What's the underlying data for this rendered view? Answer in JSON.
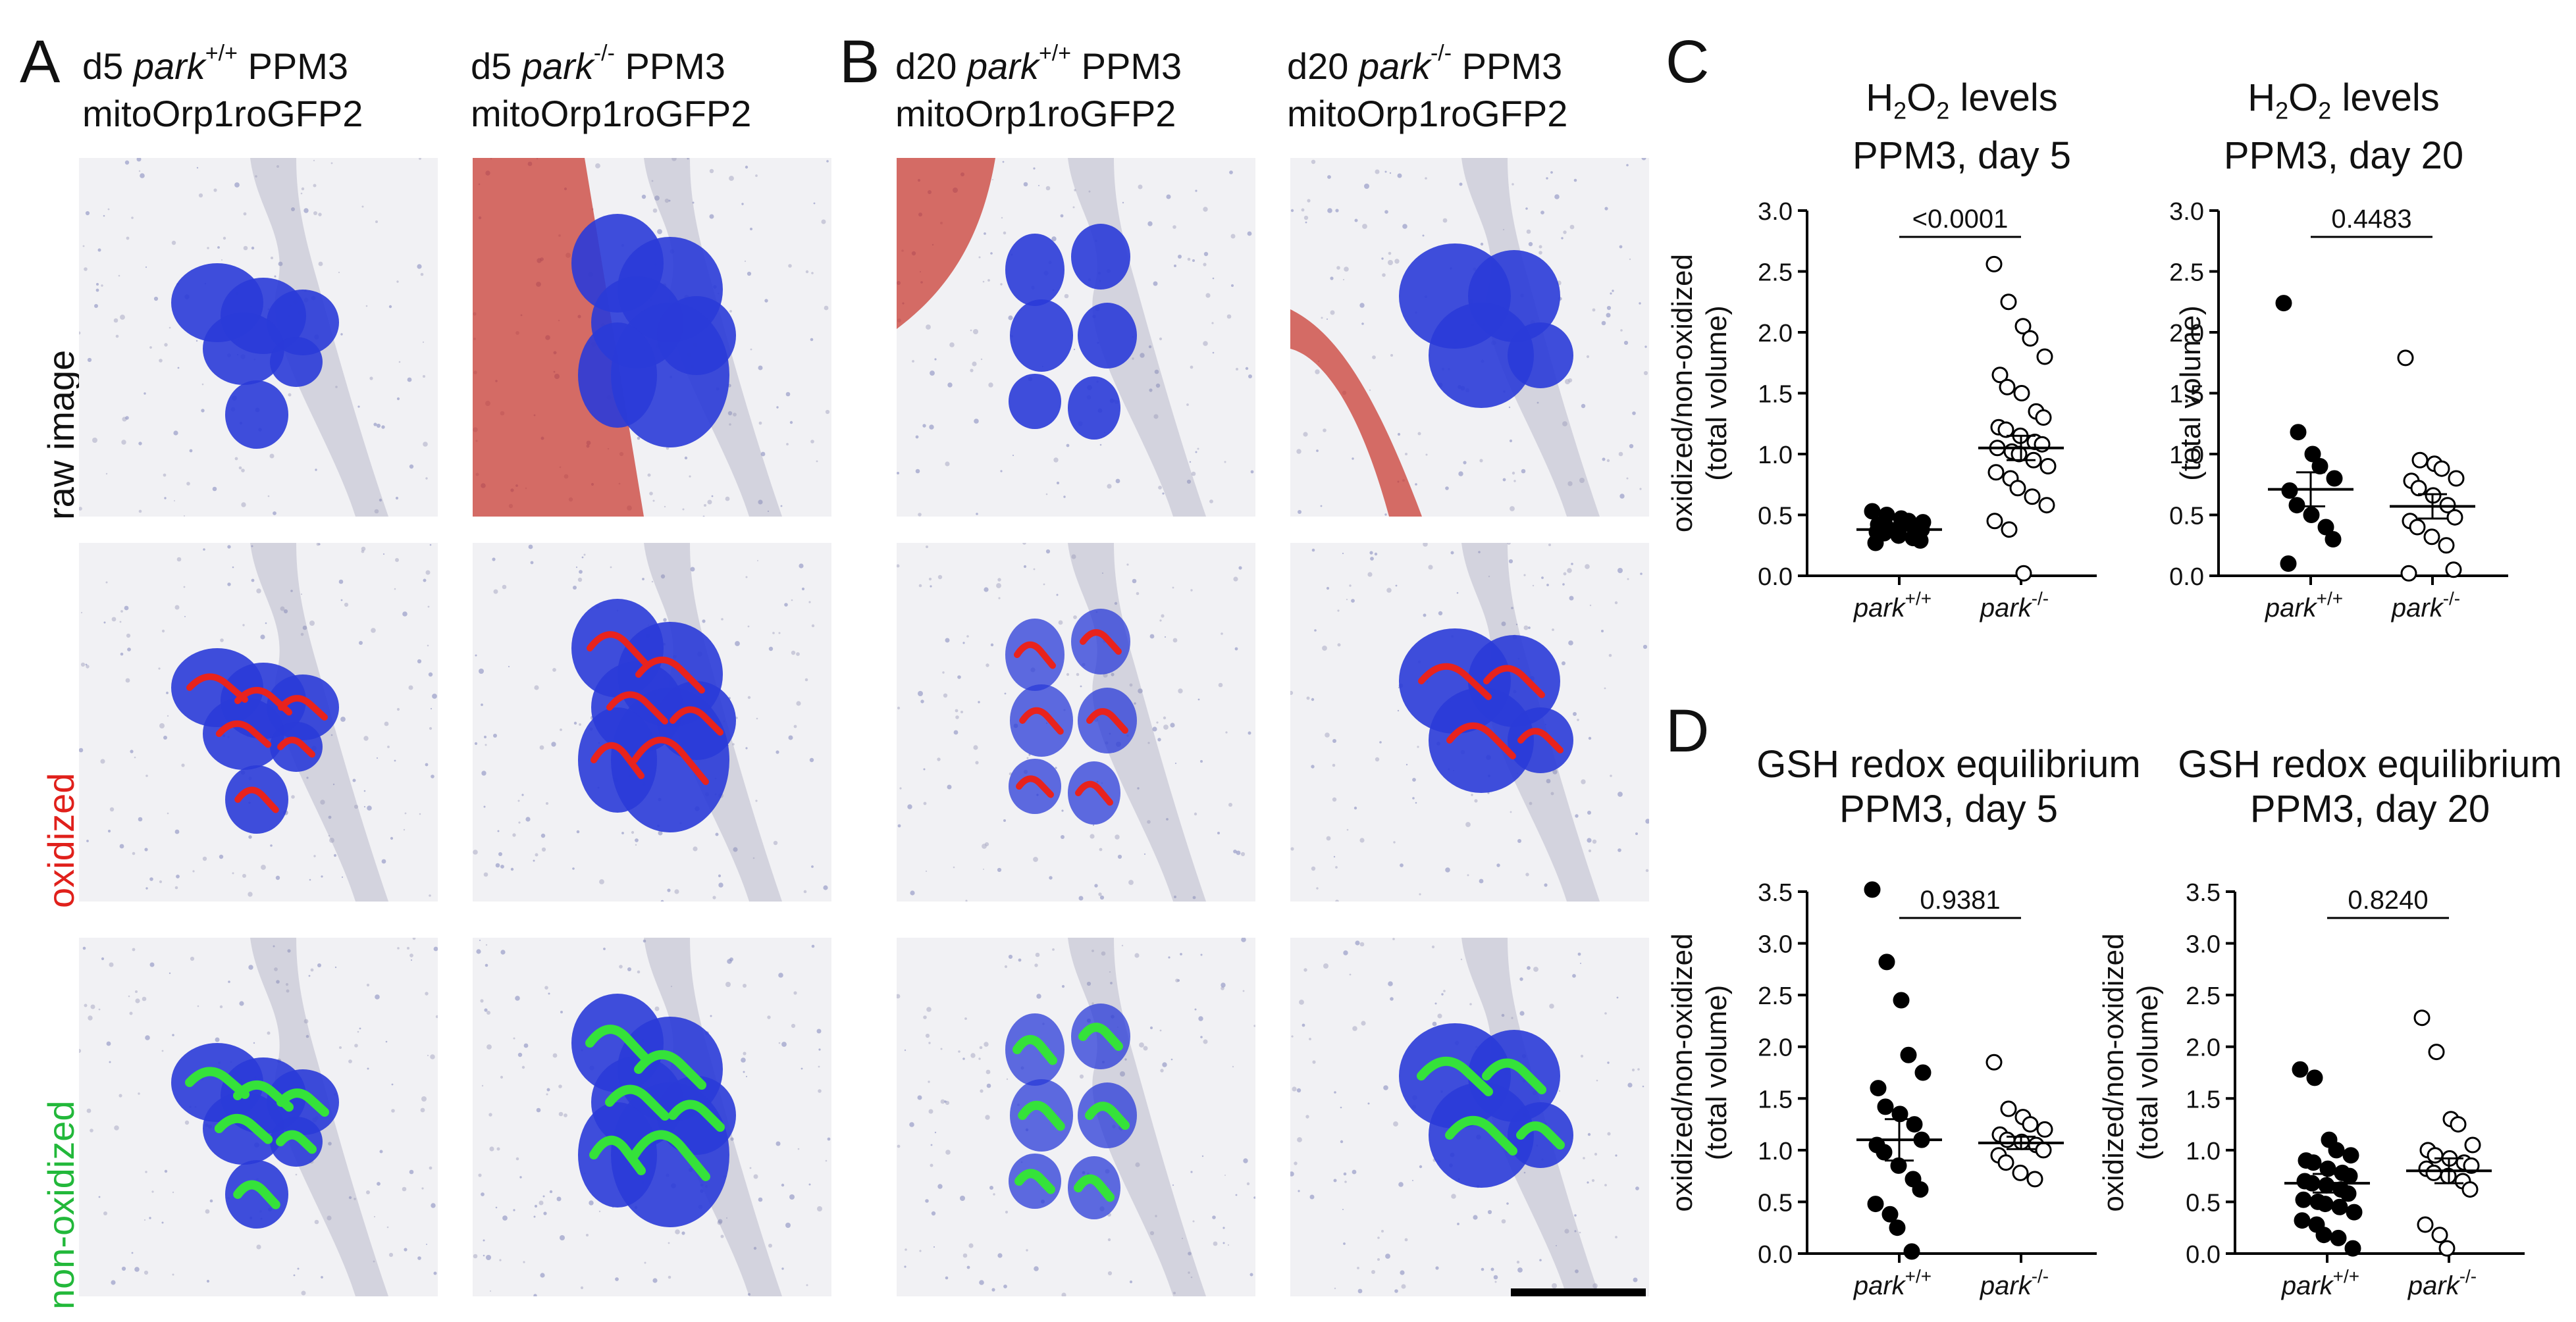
{
  "panels": {
    "A": {
      "letter": "A",
      "col1": {
        "d": "d5 ",
        "geno": "park",
        "sup": "+/+",
        "rest": " PPM3",
        "line2": "mitoOrp1roGFP2"
      },
      "col2": {
        "d": "d5 ",
        "geno": "park",
        "sup": "-/-",
        "rest": " PPM3",
        "line2": "mitoOrp1roGFP2"
      }
    },
    "B": {
      "letter": "B",
      "col1": {
        "d": "d20 ",
        "geno": "park",
        "sup": "+/+",
        "rest": " PPM3",
        "line2": "mitoOrp1roGFP2"
      },
      "col2": {
        "d": "d20 ",
        "geno": "park",
        "sup": "-/-",
        "rest": " PPM3",
        "line2": "mitoOrp1roGFP2"
      }
    },
    "C": {
      "letter": "C"
    },
    "D": {
      "letter": "D"
    }
  },
  "row_labels": [
    {
      "text": "raw image",
      "color": "#111111"
    },
    {
      "text": "oxidized",
      "color": "#e0201b"
    },
    {
      "text": "non-oxidized",
      "color": "#22b83a"
    }
  ],
  "colors": {
    "cell_blue": "#2a3bd8",
    "tissue_red": "#c83228",
    "oxidized_red": "#e8231d",
    "nonoxidized_green": "#35e23a"
  },
  "chart_titles": {
    "c1": {
      "line1a": "H",
      "sub1": "2",
      "line1b": "O",
      "sub2": "2",
      "line1c": " levels",
      "line2": "PPM3, day 5"
    },
    "c2": {
      "line1a": "H",
      "sub1": "2",
      "line1b": "O",
      "sub2": "2",
      "line1c": " levels",
      "line2": "PPM3, day 20"
    },
    "d1": {
      "line1": "GSH redox equilibrium",
      "line2": "PPM3, day 5"
    },
    "d2": {
      "line1": "GSH redox equilibrium",
      "line2": "PPM3, day 20"
    }
  },
  "chart_data": [
    {
      "id": "C-day5",
      "type": "scatter",
      "ylabel_line1": "oxidized/non-oxidized",
      "ylabel_line2": "(total volume)",
      "ylim": [
        0,
        3.0
      ],
      "yticks": [
        "0.0",
        "0.5",
        "1.0",
        "1.5",
        "2.0",
        "2.5",
        "3.0"
      ],
      "categories": [
        {
          "geno": "park",
          "sup": "+/+"
        },
        {
          "geno": "park",
          "sup": "-/-"
        }
      ],
      "pvalue": "<0.0001",
      "series": [
        {
          "filled": true,
          "mean": 0.38,
          "sem": 0.03,
          "values": [
            0.53,
            0.5,
            0.47,
            0.45,
            0.44,
            0.42,
            0.41,
            0.4,
            0.39,
            0.38,
            0.36,
            0.35,
            0.33,
            0.31,
            0.29,
            0.27
          ]
        },
        {
          "filled": false,
          "mean": 1.05,
          "sem": 0.1,
          "values": [
            2.56,
            2.25,
            2.05,
            1.95,
            1.8,
            1.65,
            1.55,
            1.5,
            1.35,
            1.3,
            1.22,
            1.2,
            1.15,
            1.1,
            1.08,
            1.05,
            1.02,
            1.0,
            0.95,
            0.9,
            0.85,
            0.8,
            0.72,
            0.65,
            0.58,
            0.45,
            0.38,
            0.02
          ]
        }
      ]
    },
    {
      "id": "C-day20",
      "type": "scatter",
      "ylabel_line1": "",
      "ylabel_line2": "(total volume)",
      "ylim": [
        0,
        3.0
      ],
      "yticks": [
        "0.0",
        "0.5",
        "1.0",
        "1.5",
        "2.0",
        "2.5",
        "3.0"
      ],
      "categories": [
        {
          "geno": "park",
          "sup": "+/+"
        },
        {
          "geno": "park",
          "sup": "-/-"
        }
      ],
      "pvalue": "0.4483",
      "series": [
        {
          "filled": true,
          "mean": 0.71,
          "sem": 0.14,
          "values": [
            2.24,
            1.18,
            1.0,
            0.9,
            0.8,
            0.7,
            0.58,
            0.5,
            0.4,
            0.3,
            0.1
          ]
        },
        {
          "filled": false,
          "mean": 0.57,
          "sem": 0.1,
          "values": [
            1.79,
            0.95,
            0.92,
            0.88,
            0.8,
            0.78,
            0.72,
            0.66,
            0.58,
            0.48,
            0.45,
            0.4,
            0.32,
            0.25,
            0.05,
            0.02
          ]
        }
      ]
    },
    {
      "id": "D-day5",
      "type": "scatter",
      "ylabel_line1": "oxidized/non-oxidized",
      "ylabel_line2": "(total volume)",
      "ylim": [
        0,
        3.5
      ],
      "yticks": [
        "0.0",
        "0.5",
        "1.0",
        "1.5",
        "2.0",
        "2.5",
        "3.0",
        "3.5"
      ],
      "categories": [
        {
          "geno": "park",
          "sup": "+/+"
        },
        {
          "geno": "park",
          "sup": "-/-"
        }
      ],
      "pvalue": "0.9381",
      "series": [
        {
          "filled": true,
          "mean": 1.1,
          "sem": 0.2,
          "values": [
            3.52,
            2.82,
            2.45,
            1.92,
            1.75,
            1.6,
            1.42,
            1.35,
            1.25,
            1.1,
            1.05,
            0.98,
            0.85,
            0.72,
            0.62,
            0.48,
            0.38,
            0.25,
            0.02
          ]
        },
        {
          "filled": false,
          "mean": 1.07,
          "sem": 0.06,
          "values": [
            1.85,
            1.4,
            1.32,
            1.25,
            1.2,
            1.15,
            1.1,
            1.08,
            1.05,
            1.0,
            0.95,
            0.88,
            0.78,
            0.72
          ]
        }
      ]
    },
    {
      "id": "D-day20",
      "type": "scatter",
      "ylabel_line1": "oxidized/non-oxidized",
      "ylabel_line2": "(total volume)",
      "ylim": [
        0,
        3.5
      ],
      "yticks": [
        "0.0",
        "0.5",
        "1.0",
        "1.5",
        "2.0",
        "2.5",
        "3.0",
        "3.5"
      ],
      "categories": [
        {
          "geno": "park",
          "sup": "+/+"
        },
        {
          "geno": "park",
          "sup": "-/-"
        }
      ],
      "pvalue": "0.8240",
      "series": [
        {
          "filled": true,
          "mean": 0.68,
          "sem": 0.09,
          "values": [
            1.78,
            1.7,
            1.1,
            1.0,
            0.95,
            0.9,
            0.88,
            0.82,
            0.78,
            0.75,
            0.7,
            0.68,
            0.66,
            0.62,
            0.58,
            0.52,
            0.5,
            0.48,
            0.45,
            0.4,
            0.32,
            0.28,
            0.18,
            0.15,
            0.05
          ]
        },
        {
          "filled": false,
          "mean": 0.8,
          "sem": 0.12,
          "values": [
            2.28,
            1.95,
            1.3,
            1.25,
            1.05,
            1.0,
            0.95,
            0.92,
            0.88,
            0.85,
            0.82,
            0.78,
            0.75,
            0.7,
            0.62,
            0.28,
            0.18,
            0.05
          ]
        }
      ]
    }
  ]
}
